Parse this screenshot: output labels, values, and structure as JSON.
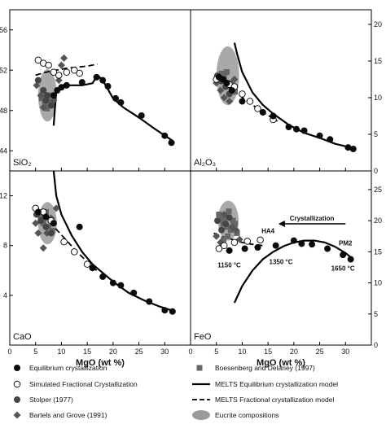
{
  "chart_data": [
    {
      "type": "scatter",
      "panel_label": "SiO₂",
      "y_ticks": [
        "44",
        "48",
        "52",
        "56"
      ],
      "y_side": "left",
      "ylim": [
        42,
        58
      ],
      "xlim": [
        0,
        35
      ],
      "x_tick_labels_shown": false,
      "equilibrium": [
        [
          8.5,
          49.5
        ],
        [
          9.2,
          50.0
        ],
        [
          10,
          50.3
        ],
        [
          11,
          50.5
        ],
        [
          14,
          50.8
        ],
        [
          16.8,
          51.3
        ],
        [
          18,
          51.0
        ],
        [
          19,
          50.4
        ],
        [
          20.5,
          49.2
        ],
        [
          21.5,
          48.8
        ],
        [
          25.5,
          47.5
        ],
        [
          30,
          45.5
        ],
        [
          31.3,
          44.8
        ]
      ],
      "fractional": [
        [
          5.5,
          53.0
        ],
        [
          6.5,
          52.7
        ],
        [
          7.5,
          52.5
        ],
        [
          8.5,
          51.8
        ],
        [
          9.5,
          51.5
        ],
        [
          11,
          51.8
        ],
        [
          12.5,
          52.0
        ],
        [
          13.5,
          51.7
        ]
      ],
      "stolper": [
        [
          5.5,
          51.0
        ],
        [
          6.5,
          50.0
        ],
        [
          7.0,
          49.0
        ],
        [
          7.2,
          49.5
        ],
        [
          8.0,
          48.5
        ]
      ],
      "bartels_grove": [
        [
          5.2,
          50.5
        ],
        [
          6.0,
          49.5
        ],
        [
          6.5,
          48.3
        ],
        [
          7.0,
          49.0
        ],
        [
          8.5,
          49.0
        ],
        [
          9.5,
          51.0
        ],
        [
          10.0,
          52.5
        ],
        [
          10.5,
          53.2
        ]
      ],
      "boesenberg_delaney": [
        [
          6.2,
          49.2
        ],
        [
          6.8,
          48.7
        ],
        [
          7.2,
          48.2
        ],
        [
          7.5,
          49.0
        ],
        [
          7.8,
          49.5
        ]
      ],
      "melts_equilibrium": [
        [
          8.5,
          46.5
        ],
        [
          9.0,
          50.0
        ],
        [
          10,
          50.5
        ],
        [
          14,
          50.5
        ],
        [
          16,
          50.7
        ],
        [
          17,
          51.5
        ],
        [
          18,
          51.0
        ],
        [
          20,
          49.2
        ],
        [
          22,
          48.3
        ],
        [
          25,
          47.3
        ],
        [
          28,
          46.2
        ],
        [
          31.5,
          45.0
        ]
      ],
      "melts_fractional": [
        [
          5,
          51.5
        ],
        [
          7,
          51.8
        ],
        [
          9,
          52.0
        ],
        [
          11,
          52.2
        ],
        [
          13,
          52.3
        ],
        [
          15,
          52.4
        ],
        [
          17,
          52.6
        ]
      ],
      "eucrite": {
        "cx": 7.3,
        "cy": 49.5,
        "rx": 1.8,
        "ry": 2.6
      }
    },
    {
      "type": "scatter",
      "panel_label": "Al₂O₃",
      "y_ticks": [
        "0",
        "5",
        "10",
        "15",
        "20"
      ],
      "y_side": "right",
      "ylim": [
        0,
        22
      ],
      "xlim": [
        0,
        35
      ],
      "x_tick_labels_shown": false,
      "equilibrium": [
        [
          5.5,
          12.8
        ],
        [
          6.3,
          12.5
        ],
        [
          7,
          12.0
        ],
        [
          8,
          11.0
        ],
        [
          10,
          9.5
        ],
        [
          14,
          8.0
        ],
        [
          16,
          7.5
        ],
        [
          19,
          6.0
        ],
        [
          20.5,
          5.7
        ],
        [
          22,
          5.5
        ],
        [
          25,
          4.8
        ],
        [
          27,
          4.3
        ],
        [
          30.5,
          3.2
        ],
        [
          31.5,
          3.0
        ]
      ],
      "fractional": [
        [
          5,
          12.5
        ],
        [
          7.5,
          11.8
        ],
        [
          8.5,
          11.5
        ],
        [
          10,
          10.5
        ],
        [
          11.5,
          9.5
        ],
        [
          13,
          8.5
        ],
        [
          16,
          7.0
        ]
      ],
      "stolper": [
        [
          5.2,
          13.0
        ],
        [
          6.0,
          12.3
        ],
        [
          6.8,
          11.5
        ],
        [
          7.5,
          10.5
        ]
      ],
      "bartels_grove": [
        [
          5.0,
          12.0
        ],
        [
          5.8,
          11.0
        ],
        [
          6.5,
          10.0
        ],
        [
          7.5,
          9.5
        ],
        [
          8.5,
          12.5
        ]
      ],
      "boesenberg_delaney": [
        [
          6.0,
          13.3
        ],
        [
          6.5,
          12.8
        ],
        [
          7.0,
          13.5
        ],
        [
          7.8,
          12.0
        ],
        [
          8.2,
          11.5
        ],
        [
          8.6,
          10.8
        ]
      ],
      "melts_equilibrium": [
        [
          8.5,
          17.5
        ],
        [
          9.0,
          16.0
        ],
        [
          10,
          13.5
        ],
        [
          12,
          10.7
        ],
        [
          14,
          9.0
        ],
        [
          16,
          7.8
        ],
        [
          19,
          6.3
        ],
        [
          22,
          5.2
        ],
        [
          25,
          4.5
        ],
        [
          28,
          3.7
        ],
        [
          31.5,
          3.1
        ]
      ],
      "melts_fractional": [
        [
          5,
          12.2
        ],
        [
          7,
          11.6
        ],
        [
          9,
          10.6
        ],
        [
          11,
          9.5
        ],
        [
          13,
          8.5
        ],
        [
          15,
          7.6
        ],
        [
          16.8,
          6.8
        ]
      ],
      "eucrite": {
        "cx": 7.2,
        "cy": 13.0,
        "rx": 2.2,
        "ry": 4.0
      }
    },
    {
      "type": "scatter",
      "panel_label": "CaO",
      "y_ticks": [
        "4",
        "8",
        "12"
      ],
      "y_side": "left",
      "ylim": [
        0,
        14
      ],
      "xlim": [
        0,
        35
      ],
      "x_ticks": [
        "0",
        "5",
        "10",
        "15",
        "20",
        "25",
        "30"
      ],
      "xlabel": "MgO (wt %)",
      "equilibrium": [
        [
          5.5,
          10.7
        ],
        [
          7,
          10.3
        ],
        [
          8.5,
          9.8
        ],
        [
          13.5,
          9.5
        ],
        [
          16,
          6.2
        ],
        [
          18,
          5.5
        ],
        [
          20,
          5.0
        ],
        [
          21.5,
          4.8
        ],
        [
          24,
          4.2
        ],
        [
          27,
          3.5
        ],
        [
          30,
          2.8
        ],
        [
          31.5,
          2.7
        ]
      ],
      "fractional": [
        [
          5,
          11.0
        ],
        [
          6.5,
          10.7
        ],
        [
          8,
          10.0
        ],
        [
          10.5,
          8.3
        ],
        [
          12.5,
          7.5
        ],
        [
          15,
          6.5
        ]
      ],
      "stolper": [
        [
          5.2,
          10.5
        ],
        [
          6.0,
          10.0
        ],
        [
          7.0,
          9.5
        ],
        [
          8.0,
          9.0
        ]
      ],
      "bartels_grove": [
        [
          5.0,
          9.8
        ],
        [
          5.5,
          9.0
        ],
        [
          6.5,
          7.8
        ],
        [
          7.2,
          9.0
        ],
        [
          8.0,
          10.2
        ],
        [
          9.0,
          11.0
        ]
      ],
      "boesenberg_delaney": [
        [
          6.0,
          10.3
        ],
        [
          6.5,
          9.8
        ],
        [
          7.0,
          10.7
        ],
        [
          7.5,
          9.5
        ],
        [
          8.2,
          9.2
        ]
      ],
      "melts_equilibrium": [
        [
          8.5,
          14.0
        ],
        [
          9.0,
          12.0
        ],
        [
          10,
          10.5
        ],
        [
          12,
          8.8
        ],
        [
          14,
          7.5
        ],
        [
          16,
          6.5
        ],
        [
          18,
          5.8
        ],
        [
          20,
          5.1
        ],
        [
          23,
          4.2
        ],
        [
          26,
          3.6
        ],
        [
          29,
          3.1
        ],
        [
          32,
          2.7
        ]
      ],
      "melts_fractional": [
        [
          5,
          10.8
        ],
        [
          7,
          10.2
        ],
        [
          9,
          9.3
        ],
        [
          11,
          8.4
        ],
        [
          13,
          7.5
        ],
        [
          15,
          6.7
        ],
        [
          16.8,
          6.0
        ]
      ],
      "eucrite": {
        "cx": 7.3,
        "cy": 9.8,
        "rx": 1.8,
        "ry": 1.7
      }
    },
    {
      "type": "scatter",
      "panel_label": "FeO",
      "y_ticks": [
        "0",
        "5",
        "10",
        "15",
        "20",
        "25"
      ],
      "y_side": "right",
      "ylim": [
        0,
        28
      ],
      "xlim": [
        0,
        35
      ],
      "x_ticks": [
        "0",
        "5",
        "10",
        "15",
        "20",
        "25",
        "30"
      ],
      "xlabel": "MgO (wt %)",
      "equilibrium": [
        [
          7.5,
          15.2
        ],
        [
          10.5,
          15.5
        ],
        [
          13,
          15.7
        ],
        [
          16.5,
          16.0
        ],
        [
          20,
          16.8
        ],
        [
          21.5,
          16.3
        ],
        [
          23.5,
          16.2
        ],
        [
          26.5,
          15.5
        ],
        [
          29.5,
          14.5
        ],
        [
          31,
          13.8
        ]
      ],
      "fractional": [
        [
          5.5,
          15.5
        ],
        [
          6.5,
          16.0
        ],
        [
          8.5,
          16.5
        ],
        [
          11,
          16.7
        ],
        [
          13.5,
          16.9
        ]
      ],
      "stolper": [
        [
          5.2,
          20.0
        ],
        [
          6.0,
          18.5
        ],
        [
          6.8,
          19.5
        ],
        [
          7.5,
          20.5
        ]
      ],
      "bartels_grove": [
        [
          5.0,
          17.5
        ],
        [
          5.8,
          16.5
        ],
        [
          6.5,
          21.0
        ],
        [
          8.0,
          19.0
        ],
        [
          8.8,
          18.5
        ],
        [
          9.5,
          17.0
        ]
      ],
      "boesenberg_delaney": [
        [
          5.5,
          21.0
        ],
        [
          6.0,
          20.2
        ],
        [
          6.3,
          19.5
        ],
        [
          6.7,
          20.5
        ],
        [
          7.0,
          19.0
        ],
        [
          7.4,
          21.5
        ],
        [
          7.8,
          18.5
        ],
        [
          8.2,
          20.0
        ],
        [
          8.6,
          19.5
        ],
        [
          9.0,
          18.0
        ],
        [
          6.4,
          17.0
        ],
        [
          7.2,
          17.5
        ]
      ],
      "melts_equilibrium": [
        [
          8.5,
          6.8
        ],
        [
          10,
          9.5
        ],
        [
          12,
          12.0
        ],
        [
          14,
          13.8
        ],
        [
          16,
          15.0
        ],
        [
          18,
          15.9
        ],
        [
          20,
          16.5
        ],
        [
          22,
          16.8
        ],
        [
          24,
          16.8
        ],
        [
          26,
          16.5
        ],
        [
          28,
          15.8
        ],
        [
          30,
          14.8
        ],
        [
          31.5,
          13.8
        ]
      ],
      "melts_fractional": [
        [
          4.5,
          18.0
        ],
        [
          6,
          17.5
        ],
        [
          8,
          17.0
        ],
        [
          10,
          16.5
        ],
        [
          12,
          16.2
        ],
        [
          14,
          16.0
        ]
      ],
      "eucrite": {
        "cx": 7.3,
        "cy": 20.0,
        "rx": 2.0,
        "ry": 3.2
      },
      "arrow": {
        "label": "Crystallization",
        "from": [
          30,
          19.5
        ],
        "to": [
          17,
          19.5
        ]
      },
      "annotations": [
        {
          "text": "HA4",
          "x": 15.0,
          "y": 18.0
        },
        {
          "text": "PM2",
          "x": 30.0,
          "y": 16.0
        },
        {
          "text": "1150 °C",
          "x": 7.5,
          "y": 12.5
        },
        {
          "text": "1350 °C",
          "x": 17.5,
          "y": 13.0
        },
        {
          "text": "1650 °C",
          "x": 29.5,
          "y": 12.0
        }
      ]
    }
  ],
  "legend": [
    {
      "key": "equilibrium",
      "label": "Equilibrium crystallization"
    },
    {
      "key": "fractional",
      "label": "Simulated Fractional Crystallization"
    },
    {
      "key": "stolper",
      "label": "Stolper (1977)"
    },
    {
      "key": "bartels_grove",
      "label": "Bartels and Grove (1991)"
    },
    {
      "key": "boesenberg_delaney",
      "label": "Boesenberg and Delaney (1997)"
    },
    {
      "key": "melts_equilibrium",
      "label": "MELTS Equilibrium crystallization model"
    },
    {
      "key": "melts_fractional",
      "label": "MELTS Fractional crystallization model"
    },
    {
      "key": "eucrite",
      "label": "Eucrite compositions"
    }
  ],
  "colors": {
    "equilibrium": "#0a0a0a",
    "fractional": "#ffffff",
    "stolper": "#444444",
    "bartels_grove": "#555555",
    "boesenberg_delaney": "#666666",
    "eucrite": "#9a9a9a",
    "line": "#000000"
  }
}
